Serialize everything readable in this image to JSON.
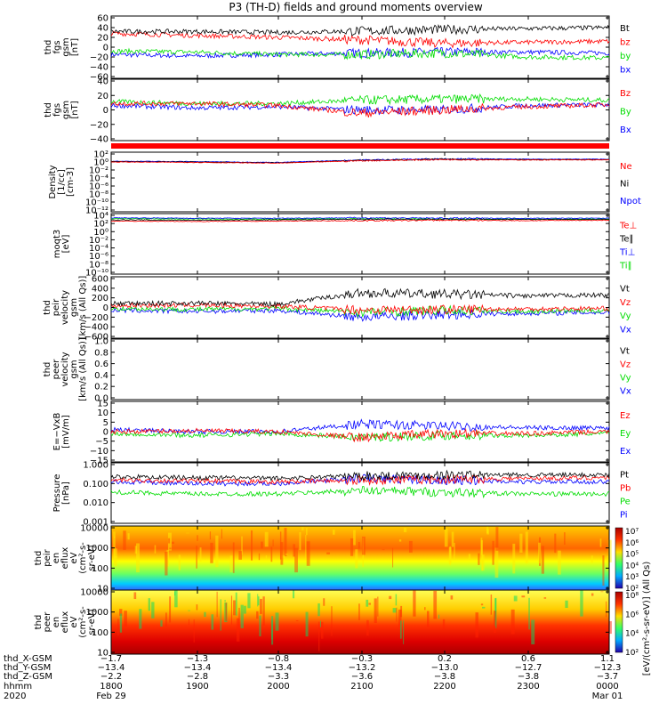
{
  "title": "P3 (TH-D) fields and ground moments overview",
  "colors": {
    "black": "#000000",
    "red": "#ff0000",
    "green": "#00dd00",
    "blue": "#0000ff",
    "bar_red": "#ff0000"
  },
  "panels": [
    {
      "id": "fgs-gsm",
      "ylabel": [
        "thd",
        "fgs",
        "gsm",
        "[nT]"
      ],
      "yticks": [
        "60",
        "40",
        "20",
        "0",
        "−20",
        "−40",
        "−60"
      ],
      "legend": [
        {
          "text": "Bt",
          "color": "#000000"
        },
        {
          "text": "bz",
          "color": "#ff0000"
        },
        {
          "text": "by",
          "color": "#00dd00"
        },
        {
          "text": "bx",
          "color": "#0000ff"
        }
      ]
    },
    {
      "id": "fgs-dsl",
      "ylabel": [
        "thd",
        "fgs",
        "gsm",
        "[nT]"
      ],
      "yticks": [
        "40",
        "20",
        "0",
        "−20",
        "−40"
      ],
      "legend": [
        {
          "text": "Bz",
          "color": "#ff0000"
        },
        {
          "text": "By",
          "color": "#00dd00"
        },
        {
          "text": "Bx",
          "color": "#0000ff"
        }
      ]
    },
    {
      "id": "density",
      "ylabel": [
        "Density",
        "[1/cc]",
        "[cm-3]"
      ],
      "yticks": [
        "10²",
        "10⁰",
        "10⁻²",
        "10⁻⁴",
        "10⁻⁶",
        "10⁻⁸",
        "10⁻¹⁰",
        "10⁻¹²"
      ],
      "legend": [
        {
          "text": "Ne",
          "color": "#ff0000"
        },
        {
          "text": "Ni",
          "color": "#000000"
        },
        {
          "text": "Npot",
          "color": "#0000ff"
        }
      ]
    },
    {
      "id": "temp",
      "ylabel": [
        "moqt3",
        "[eV]"
      ],
      "yticks": [
        "10⁴",
        "10²",
        "10⁰",
        "10⁻²",
        "10⁻⁴",
        "10⁻⁶",
        "10⁻⁸",
        "10⁻¹⁰"
      ],
      "legend": [
        {
          "text": "Te⊥",
          "color": "#ff0000"
        },
        {
          "text": "Te∥",
          "color": "#000000"
        },
        {
          "text": "Ti⊥",
          "color": "#0000ff"
        },
        {
          "text": "Ti∥",
          "color": "#00dd00"
        }
      ]
    },
    {
      "id": "peir-vel",
      "ylabel": [
        "thd",
        "peir",
        "velocity",
        "gsm",
        "[km/s (All Qs)]"
      ],
      "yticks": [
        "600",
        "400",
        "200",
        "0",
        "−200",
        "−400",
        "−600"
      ],
      "legend": [
        {
          "text": "Vt",
          "color": "#000000"
        },
        {
          "text": "Vz",
          "color": "#ff0000"
        },
        {
          "text": "Vy",
          "color": "#00dd00"
        },
        {
          "text": "Vx",
          "color": "#0000ff"
        }
      ]
    },
    {
      "id": "peer-vel",
      "ylabel": [
        "thd",
        "peer",
        "velocity",
        "gsm",
        "[km/s (All Qs)]"
      ],
      "yticks": [
        "1.0",
        "0.8",
        "0.6",
        "0.4",
        "0.2",
        "0.0"
      ],
      "legend": [
        {
          "text": "Vt",
          "color": "#000000"
        },
        {
          "text": "Vz",
          "color": "#ff0000"
        },
        {
          "text": "Vy",
          "color": "#00dd00"
        },
        {
          "text": "Vx",
          "color": "#0000ff"
        }
      ]
    },
    {
      "id": "efield",
      "ylabel": [
        "E=−VxB",
        "[mV/m]"
      ],
      "yticks": [
        "15",
        "10",
        "5",
        "0",
        "−5",
        "−10",
        "−15"
      ],
      "legend": [
        {
          "text": "Ez",
          "color": "#ff0000"
        },
        {
          "text": "Ey",
          "color": "#00dd00"
        },
        {
          "text": "Ex",
          "color": "#0000ff"
        }
      ]
    },
    {
      "id": "pressure",
      "ylabel": [
        "Pressure",
        "[nPa]"
      ],
      "yticks": [
        "1.000",
        "0.100",
        "0.010",
        "0.001"
      ],
      "legend": [
        {
          "text": "Pt",
          "color": "#000000"
        },
        {
          "text": "Pb",
          "color": "#ff0000"
        },
        {
          "text": "Pe",
          "color": "#00dd00"
        },
        {
          "text": "Pi",
          "color": "#0000ff"
        }
      ]
    },
    {
      "id": "peir-spec",
      "ylabel": [
        "thd",
        "peir",
        "en",
        "eflux",
        "eV",
        "(cm²-s-",
        "sr-eV)"
      ],
      "yticks": [
        "10000",
        "1000",
        "100",
        "10"
      ]
    },
    {
      "id": "peer-spec",
      "ylabel": [
        "thd",
        "peer",
        "en",
        "eflux",
        "eV",
        "(cm²-s-",
        "sr-eV)"
      ],
      "yticks": [
        "10000",
        "1000",
        "100",
        "10"
      ]
    }
  ],
  "colorbars": [
    {
      "ticks": [
        "10⁷",
        "10⁶",
        "10⁵",
        "10⁴",
        "10³",
        "10²"
      ]
    },
    {
      "ticks": [
        "10⁸",
        "10⁶",
        "10⁴",
        "10²"
      ]
    }
  ],
  "colorbar_label": "[eV/(cm²-s-sr-eV)] (All Qs)",
  "xaxis": {
    "row_labels": [
      "thd_X-GSM",
      "thd_Y-GSM",
      "thd_Z-GSM",
      "hhmm",
      "2020"
    ],
    "rows": [
      [
        "−1.7",
        "−1.3",
        "−0.8",
        "−0.3",
        "0.2",
        "0.6",
        "1.1"
      ],
      [
        "−13.4",
        "−13.4",
        "−13.4",
        "−13.2",
        "−13.0",
        "−12.7",
        "−12.3"
      ],
      [
        "−2.2",
        "−2.8",
        "−3.3",
        "−3.6",
        "−3.8",
        "−3.8",
        "−3.7"
      ],
      [
        "1800",
        "1900",
        "2000",
        "2100",
        "2200",
        "2300",
        "0000"
      ]
    ],
    "date_labels": [
      {
        "text": "Feb 29",
        "col": 0
      },
      {
        "text": "Mar 01",
        "col": 6
      }
    ]
  },
  "chart_data": {
    "type": "line",
    "title": "P3 (TH-D) fields and ground moments overview",
    "x_range": [
      "2020-02-29 18:00",
      "2020-03-01 00:00"
    ],
    "x_ticks": [
      "1800",
      "1900",
      "2000",
      "2100",
      "2200",
      "2300",
      "0000"
    ],
    "panels": [
      {
        "ylim": [
          -60,
          60
        ],
        "series": [
          {
            "name": "Bt",
            "color": "#000000",
            "times": [
              0,
              1,
              2,
              3,
              4,
              5,
              6
            ],
            "values": [
              32,
              32,
              30,
              33,
              36,
              38,
              40
            ]
          },
          {
            "name": "bz",
            "color": "#ff0000",
            "times": [
              0,
              1,
              2,
              3,
              4,
              5,
              6
            ],
            "values": [
              28,
              24,
              20,
              15,
              8,
              10,
              12
            ]
          },
          {
            "name": "by",
            "color": "#00dd00",
            "times": [
              0,
              1,
              2,
              3,
              4,
              5,
              6
            ],
            "values": [
              -8,
              -10,
              -15,
              -15,
              -12,
              -20,
              -22
            ]
          },
          {
            "name": "bx",
            "color": "#0000ff",
            "times": [
              0,
              1,
              2,
              3,
              4,
              5,
              6
            ],
            "values": [
              -15,
              -18,
              -15,
              -12,
              -10,
              -10,
              -12
            ]
          }
        ]
      },
      {
        "ylim": [
          -50,
          40
        ],
        "series": [
          {
            "name": "Bz",
            "color": "#ff0000",
            "times": [
              0,
              1,
              2,
              3,
              4,
              5,
              6
            ],
            "values": [
              5,
              5,
              2,
              -10,
              -5,
              0,
              3
            ]
          },
          {
            "name": "By",
            "color": "#00dd00",
            "times": [
              0,
              1,
              2,
              3,
              4,
              5,
              6
            ],
            "values": [
              8,
              5,
              5,
              10,
              12,
              12,
              10
            ]
          },
          {
            "name": "Bx",
            "color": "#0000ff",
            "times": [
              0,
              1,
              2,
              3,
              4,
              5,
              6
            ],
            "values": [
              2,
              -2,
              0,
              -5,
              -5,
              2,
              3
            ]
          }
        ]
      },
      {
        "ylim": [
          -12,
          2
        ],
        "log": true,
        "series": [
          {
            "name": "Ne",
            "color": "#ff0000",
            "times": [
              0,
              1,
              2,
              3,
              4,
              5,
              6
            ],
            "values": [
              0,
              -0.1,
              -0.3,
              0.3,
              0.6,
              0.5,
              0.5
            ]
          },
          {
            "name": "Ni",
            "color": "#000000",
            "times": [
              0,
              1,
              2,
              3,
              4,
              5,
              6
            ],
            "values": [
              0.1,
              0,
              -0.2,
              0.4,
              0.7,
              0.6,
              0.6
            ]
          },
          {
            "name": "Npot",
            "color": "#0000ff",
            "times": [
              0,
              1,
              2,
              3,
              4,
              5,
              6
            ],
            "values": [
              0.2,
              0.1,
              -0.1,
              0.5,
              0.8,
              0.7,
              0.7
            ]
          }
        ]
      },
      {
        "ylim": [
          -10,
          4
        ],
        "log": true,
        "series": [
          {
            "name": "Te⊥",
            "color": "#ff0000",
            "times": [
              0,
              1,
              2,
              3,
              4,
              5,
              6
            ],
            "values": [
              2.6,
              2.5,
              2.6,
              2.7,
              2.8,
              2.7,
              2.8
            ]
          },
          {
            "name": "Te∥",
            "color": "#000000",
            "times": [
              0,
              1,
              2,
              3,
              4,
              5,
              6
            ],
            "values": [
              2.9,
              2.8,
              2.9,
              3.0,
              3.0,
              3.0,
              3.0
            ]
          },
          {
            "name": "Ti⊥",
            "color": "#0000ff",
            "times": [
              0,
              1,
              2,
              3,
              4,
              5,
              6
            ],
            "values": [
              3.4,
              3.3,
              3.3,
              3.4,
              3.3,
              3.3,
              3.3
            ]
          },
          {
            "name": "Ti∥",
            "color": "#00dd00",
            "times": [
              0,
              1,
              2,
              3,
              4,
              5,
              6
            ],
            "values": [
              3.2,
              3.1,
              3.1,
              3.2,
              3.1,
              3.1,
              3.1
            ]
          }
        ]
      },
      {
        "ylim": [
          -600,
          600
        ],
        "series": [
          {
            "name": "Vt",
            "color": "#000000",
            "times": [
              0,
              1,
              2,
              3,
              4,
              5,
              6
            ],
            "values": [
              80,
              90,
              70,
              300,
              280,
              240,
              260
            ]
          },
          {
            "name": "Vz",
            "color": "#ff0000",
            "times": [
              0,
              1,
              2,
              3,
              4,
              5,
              6
            ],
            "values": [
              40,
              50,
              30,
              -50,
              -40,
              -30,
              -20
            ]
          },
          {
            "name": "Vy",
            "color": "#00dd00",
            "times": [
              0,
              1,
              2,
              3,
              4,
              5,
              6
            ],
            "values": [
              -20,
              -40,
              -20,
              -100,
              -60,
              -80,
              -60
            ]
          },
          {
            "name": "Vx",
            "color": "#0000ff",
            "times": [
              0,
              1,
              2,
              3,
              4,
              5,
              6
            ],
            "values": [
              -60,
              -80,
              -60,
              -200,
              -150,
              -120,
              -100
            ]
          }
        ]
      },
      {
        "ylim": [
          0,
          1
        ],
        "series": []
      },
      {
        "ylim": [
          -15,
          15
        ],
        "series": [
          {
            "name": "Ez",
            "color": "#ff0000",
            "times": [
              0,
              1,
              2,
              3,
              4,
              5,
              6
            ],
            "values": [
              0,
              0.5,
              0,
              -3,
              -1,
              -1,
              0
            ]
          },
          {
            "name": "Ey",
            "color": "#00dd00",
            "times": [
              0,
              1,
              2,
              3,
              4,
              5,
              6
            ],
            "values": [
              -1,
              -2,
              -1,
              -3,
              -2,
              -2,
              -1
            ]
          },
          {
            "name": "Ex",
            "color": "#0000ff",
            "times": [
              0,
              1,
              2,
              3,
              4,
              5,
              6
            ],
            "values": [
              1,
              0,
              0,
              4,
              3,
              2,
              2
            ]
          }
        ]
      },
      {
        "ylim": [
          -3,
          0.3
        ],
        "log": true,
        "series": [
          {
            "name": "Pt",
            "color": "#000000",
            "times": [
              0,
              1,
              2,
              3,
              4,
              5,
              6
            ],
            "values": [
              -0.4,
              -0.45,
              -0.5,
              -0.35,
              -0.3,
              -0.3,
              -0.3
            ]
          },
          {
            "name": "Pb",
            "color": "#ff0000",
            "times": [
              0,
              1,
              2,
              3,
              4,
              5,
              6
            ],
            "values": [
              -0.6,
              -0.65,
              -0.7,
              -0.6,
              -0.55,
              -0.5,
              -0.45
            ]
          },
          {
            "name": "Pe",
            "color": "#00dd00",
            "times": [
              0,
              1,
              2,
              3,
              4,
              5,
              6
            ],
            "values": [
              -1.3,
              -1.4,
              -1.4,
              -1.2,
              -1.3,
              -1.4,
              -1.4
            ]
          },
          {
            "name": "Pi",
            "color": "#0000ff",
            "times": [
              0,
              1,
              2,
              3,
              4,
              5,
              6
            ],
            "values": [
              -0.7,
              -0.8,
              -0.8,
              -0.5,
              -0.6,
              -0.7,
              -0.7
            ]
          }
        ]
      }
    ]
  }
}
